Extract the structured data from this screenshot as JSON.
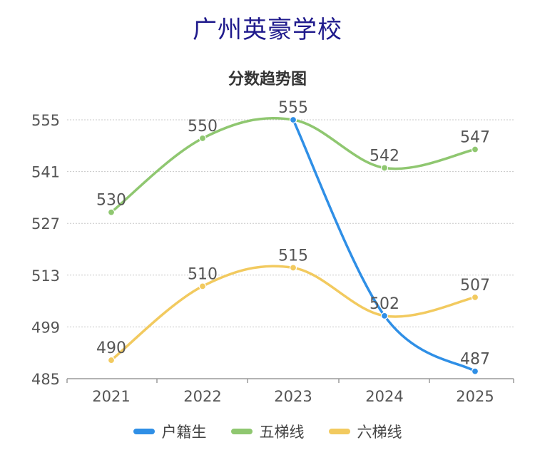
{
  "page": {
    "title": "广州英豪学校"
  },
  "chart_data": {
    "type": "line",
    "title": "分数趋势图",
    "xlabel": "",
    "ylabel": "",
    "categories": [
      "2021",
      "2022",
      "2023",
      "2024",
      "2025"
    ],
    "ylim": [
      485,
      555
    ],
    "yticks": [
      485,
      499,
      513,
      527,
      541,
      555
    ],
    "grid": true,
    "legend_position": "bottom",
    "series": [
      {
        "name": "户籍生",
        "color": "#2f8fe6",
        "values": [
          null,
          null,
          555,
          502,
          487
        ],
        "labels": [
          "",
          "",
          "",
          "",
          "487"
        ]
      },
      {
        "name": "五梯线",
        "color": "#8fc770",
        "values": [
          530,
          550,
          555,
          542,
          547
        ],
        "labels": [
          "530",
          "550",
          "555",
          "542",
          "547"
        ]
      },
      {
        "name": "六梯线",
        "color": "#f2ca5f",
        "values": [
          490,
          510,
          515,
          502,
          507
        ],
        "labels": [
          "490",
          "510",
          "515",
          "502",
          "507"
        ]
      }
    ]
  }
}
